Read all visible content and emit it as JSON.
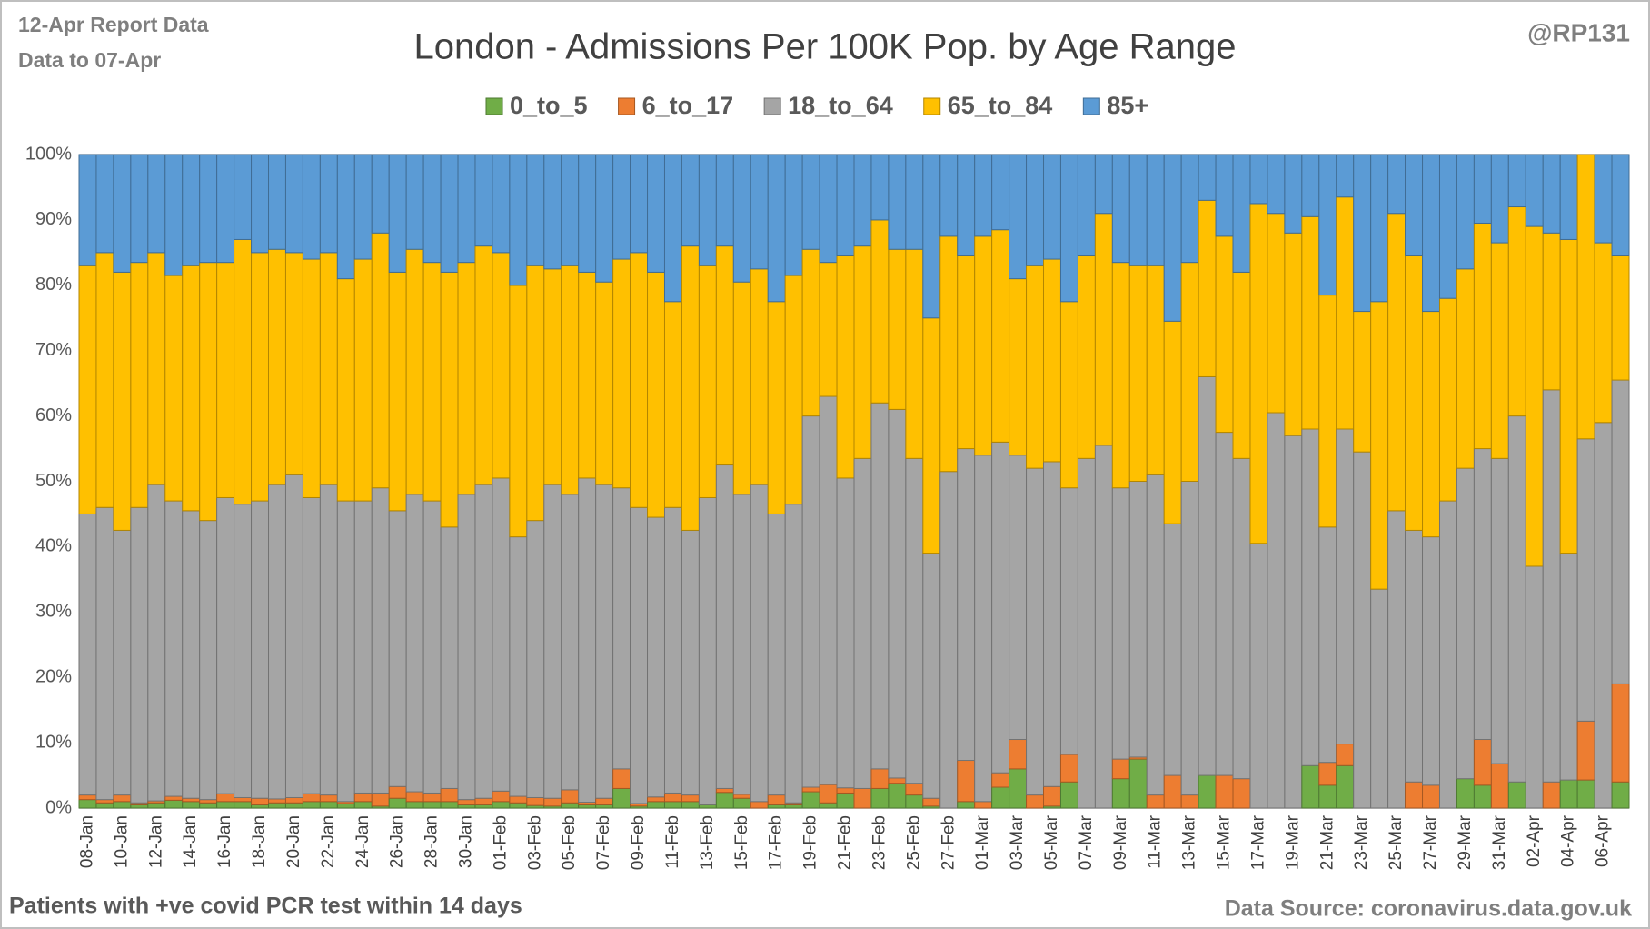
{
  "chart_data": {
    "type": "stacked_bar_100",
    "title": "London - Admissions Per 100K Pop. by Age Range",
    "report_date": "12-Apr Report Data",
    "data_to": "Data to 07-Apr",
    "author": "@RP131",
    "footnote": "Patients with  +ve covid PCR test within 14 days",
    "source": "Data Source: coronavirus.data.gov.uk",
    "grid": true,
    "legend": "top",
    "categories": [
      "08-Jan",
      null,
      "10-Jan",
      null,
      "12-Jan",
      null,
      "14-Jan",
      null,
      "16-Jan",
      null,
      "18-Jan",
      null,
      "20-Jan",
      null,
      "22-Jan",
      null,
      "24-Jan",
      null,
      "26-Jan",
      null,
      "28-Jan",
      null,
      "30-Jan",
      null,
      "01-Feb",
      null,
      "03-Feb",
      null,
      "05-Feb",
      null,
      "07-Feb",
      null,
      "09-Feb",
      null,
      "11-Feb",
      null,
      "13-Feb",
      null,
      "15-Feb",
      null,
      "17-Feb",
      null,
      "19-Feb",
      null,
      "21-Feb",
      null,
      "23-Feb",
      null,
      "25-Feb",
      null,
      "27-Feb",
      null,
      "01-Mar",
      null,
      "03-Mar",
      null,
      "05-Mar",
      null,
      "07-Mar",
      null,
      "09-Mar",
      null,
      "11-Mar",
      null,
      "13-Mar",
      null,
      "15-Mar",
      null,
      "17-Mar",
      null,
      "19-Mar",
      null,
      "21-Mar",
      null,
      "23-Mar",
      null,
      "25-Mar",
      null,
      "27-Mar",
      null,
      "29-Mar",
      null,
      "31-Mar",
      null,
      "02-Apr",
      null,
      "04-Apr",
      null,
      "06-Apr",
      null
    ],
    "ylim": [
      0,
      100
    ],
    "yticks": [
      {
        "value": 0,
        "label": "0%"
      },
      {
        "value": 10,
        "label": "10%"
      },
      {
        "value": 20,
        "label": "20%"
      },
      {
        "value": 30,
        "label": "30%"
      },
      {
        "value": 40,
        "label": "40%"
      },
      {
        "value": 50,
        "label": "50%"
      },
      {
        "value": 60,
        "label": "60%"
      },
      {
        "value": 70,
        "label": "70%"
      },
      {
        "value": 80,
        "label": "80%"
      },
      {
        "value": 90,
        "label": "90%"
      },
      {
        "value": 100,
        "label": "100%"
      }
    ],
    "series": [
      {
        "name": "0_to_5",
        "color": "#70ad47",
        "values": [
          1.3,
          0.8,
          1,
          0.5,
          0.8,
          1.2,
          1,
          0.8,
          1,
          1,
          0.5,
          0.8,
          0.8,
          1,
          1,
          0.7,
          1,
          0.3,
          1.5,
          1,
          1,
          1,
          0.5,
          0.5,
          1,
          0.8,
          0.4,
          0.3,
          0.8,
          0.5,
          0.5,
          3,
          0.3,
          1,
          1,
          1,
          0.5,
          2.4,
          1.5,
          0,
          0.5,
          0.5,
          2.5,
          0.8,
          2.3,
          0,
          3,
          3.8,
          2,
          0.3,
          0,
          1,
          0,
          3.2,
          6,
          0,
          0.3,
          4,
          0,
          0,
          4.5,
          7.5,
          0,
          0,
          0,
          5,
          0,
          0,
          0,
          0,
          0,
          6.5,
          3.5,
          6.5,
          0,
          0,
          0,
          0,
          0,
          0,
          4.5,
          3.5,
          0,
          4,
          0,
          0,
          4.3,
          4.3,
          0,
          4
        ]
      },
      {
        "name": "6_to_17",
        "color": "#ed7d31",
        "values": [
          0.7,
          0.5,
          1,
          0.3,
          0.3,
          0.6,
          0.5,
          0.5,
          1.2,
          0.6,
          1,
          0.6,
          0.8,
          1.2,
          1,
          0.3,
          1.3,
          2,
          1.8,
          1.5,
          1.3,
          2,
          0.8,
          1,
          1.6,
          1,
          1.2,
          1.2,
          2,
          0.4,
          1,
          3,
          0.4,
          0.7,
          1.3,
          1,
          0,
          0.6,
          0.6,
          1,
          1.5,
          0.3,
          0.7,
          2.8,
          0.8,
          3,
          3,
          0.8,
          1.8,
          1.2,
          0,
          6.3,
          1,
          2.2,
          4.5,
          2,
          3,
          4.2,
          0,
          0,
          3,
          0.3,
          2,
          5,
          2,
          0,
          5,
          4.5,
          0,
          0,
          0,
          0,
          3.5,
          3.3,
          0,
          0,
          0,
          4,
          3.5,
          0,
          0,
          7,
          6.8,
          0,
          0,
          4,
          0,
          9,
          0,
          15
        ]
      },
      {
        "name": "18_to_64",
        "color": "#a5a5a5",
        "values": [
          43,
          44.7,
          40.5,
          45.2,
          48.4,
          45.2,
          44,
          42.7,
          45.3,
          44.9,
          45.5,
          48.1,
          49.4,
          45.3,
          47.5,
          46,
          44.7,
          46.7,
          42.2,
          45.5,
          44.7,
          40,
          46.7,
          48,
          47.9,
          39.7,
          42.4,
          48,
          45.2,
          49.6,
          48,
          43,
          45.3,
          42.8,
          43.7,
          40.5,
          47,
          49.5,
          45.9,
          48.5,
          43,
          45.7,
          56.8,
          59.4,
          47.4,
          50.5,
          56,
          56.4,
          49.7,
          37.5,
          51.5,
          47.7,
          53,
          50.6,
          43.5,
          50,
          49.7,
          40.8,
          53.5,
          55.5,
          41.5,
          42.2,
          49,
          38.5,
          48,
          61,
          52.5,
          49,
          40.5,
          60.5,
          57,
          51.5,
          36,
          48.2,
          54.5,
          33.5,
          45.5,
          38.5,
          38,
          47,
          47.5,
          44.5,
          46.7,
          56,
          37,
          60,
          34.7,
          43.2,
          59,
          46.5
        ]
      },
      {
        "name": "65_to_84",
        "color": "#ffc000",
        "values": [
          38,
          39,
          39.5,
          37.5,
          35.5,
          34.5,
          37.5,
          39.5,
          36,
          40.5,
          38,
          36,
          34,
          36.5,
          35.5,
          34,
          37,
          39,
          36.5,
          37.5,
          36.5,
          39,
          35.5,
          36.5,
          34.5,
          38.5,
          39,
          33,
          35,
          31.5,
          31,
          35,
          39,
          37.5,
          31.5,
          43.5,
          35.5,
          33.5,
          32.5,
          33,
          32.5,
          35,
          25.5,
          20.5,
          34,
          32.5,
          28,
          24.5,
          32,
          36,
          36,
          29.5,
          33.5,
          32.5,
          27,
          31,
          31,
          28.5,
          31,
          35.5,
          34.5,
          33,
          32,
          31,
          33.5,
          27,
          30,
          28.5,
          52,
          30.5,
          31,
          32.5,
          35.5,
          35.5,
          21.5,
          44,
          45.5,
          42,
          34.5,
          31,
          30.5,
          34.5,
          33,
          32,
          52,
          24,
          48,
          43.5,
          27.5,
          19
        ]
      },
      {
        "name": "85+",
        "color": "#5b9bd5",
        "values": [
          17,
          15,
          18,
          16.5,
          15,
          18.5,
          17,
          16.5,
          16.5,
          13,
          15,
          14.5,
          15,
          16,
          15,
          19,
          16,
          12,
          18,
          14.5,
          16.5,
          18,
          16.5,
          14,
          15,
          20,
          17,
          17.5,
          17,
          18,
          19.5,
          16,
          15,
          18,
          22.5,
          14,
          17,
          14,
          19.5,
          17.5,
          22.5,
          18.5,
          14.5,
          16.5,
          15.5,
          14,
          10,
          14.5,
          14.5,
          25,
          12.5,
          15.5,
          12.5,
          11.5,
          19,
          17,
          16,
          22.5,
          15.5,
          9,
          16.5,
          17,
          17,
          25.5,
          16.5,
          7,
          12.5,
          18,
          7.5,
          9,
          12,
          9.5,
          21.5,
          6.5,
          24,
          22.5,
          9,
          15.5,
          24,
          22,
          17.5,
          10.5,
          13.5,
          8,
          11,
          12,
          13,
          0,
          13.5,
          15.5
        ]
      }
    ]
  }
}
